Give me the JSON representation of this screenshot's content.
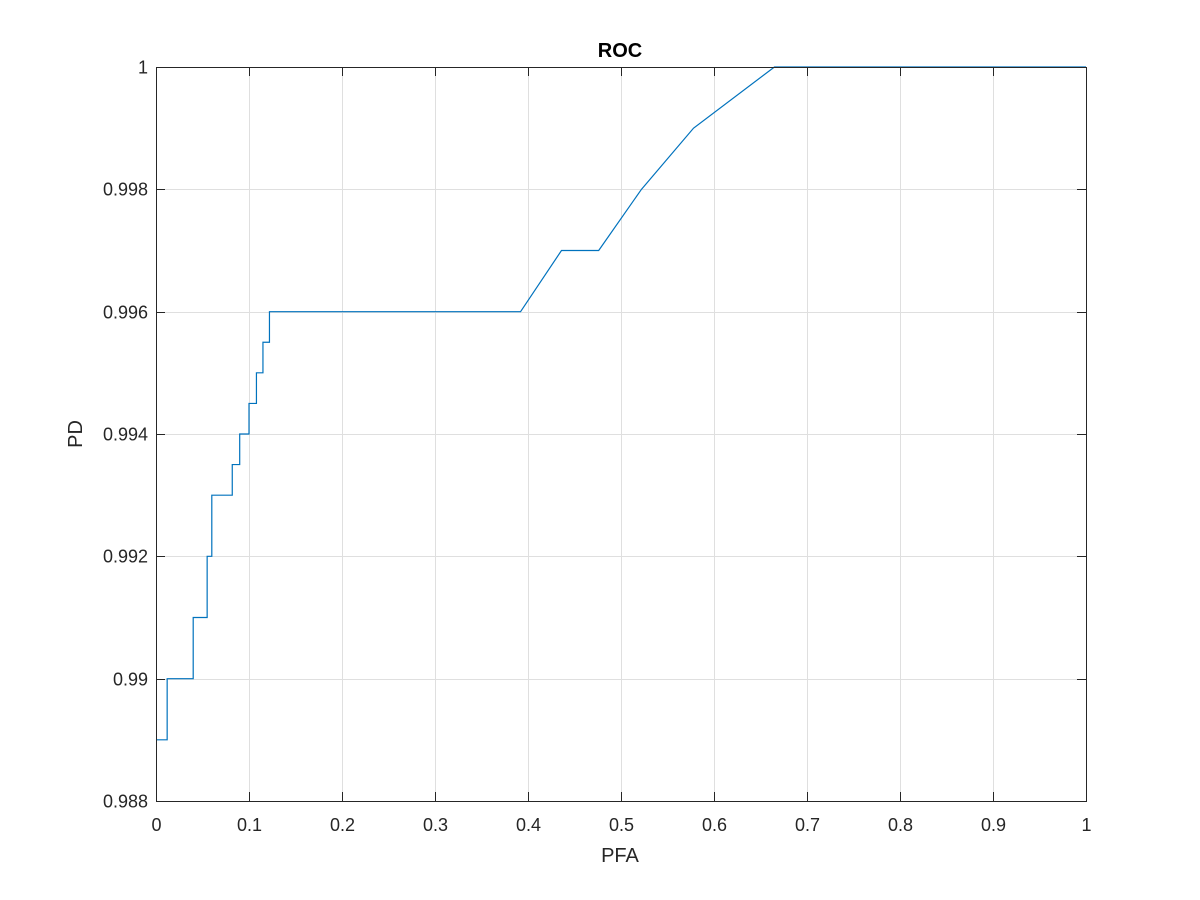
{
  "colors": {
    "series": "#0072BD",
    "grid": "#dfdfdf",
    "axis": "#262626",
    "background": "#ffffff"
  },
  "chart_data": {
    "type": "line",
    "title": "ROC",
    "xlabel": "PFA",
    "ylabel": "PD",
    "xlim": [
      0,
      1
    ],
    "ylim": [
      0.988,
      1
    ],
    "grid": true,
    "box": true,
    "x_ticks": [
      0,
      0.1,
      0.2,
      0.3,
      0.4,
      0.5,
      0.6,
      0.7,
      0.8,
      0.9,
      1
    ],
    "x_tick_labels": [
      "0",
      "0.1",
      "0.2",
      "0.3",
      "0.4",
      "0.5",
      "0.6",
      "0.7",
      "0.8",
      "0.9",
      "1"
    ],
    "y_ticks": [
      0.988,
      0.99,
      0.992,
      0.994,
      0.996,
      0.998,
      1
    ],
    "y_tick_labels": [
      "0.988",
      "0.99",
      "0.992",
      "0.994",
      "0.996",
      "0.998",
      "1"
    ],
    "series": [
      {
        "x": [
          0,
          0.012,
          0.012,
          0.04,
          0.04,
          0.055,
          0.055,
          0.06,
          0.06,
          0.082,
          0.082,
          0.09,
          0.09,
          0.1,
          0.1,
          0.108,
          0.108,
          0.115,
          0.115,
          0.122,
          0.122,
          0.392,
          0.436,
          0.476,
          0.522,
          0.578,
          0.665,
          1.0
        ],
        "y": [
          0.989,
          0.989,
          0.99,
          0.99,
          0.991,
          0.991,
          0.992,
          0.992,
          0.993,
          0.993,
          0.9935,
          0.9935,
          0.994,
          0.994,
          0.9945,
          0.9945,
          0.995,
          0.995,
          0.9955,
          0.9955,
          0.996,
          0.996,
          0.997,
          0.997,
          0.998,
          0.999,
          1.0,
          1.0
        ]
      }
    ]
  }
}
